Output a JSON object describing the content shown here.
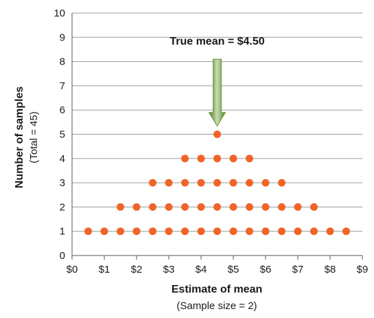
{
  "chart_data": {
    "type": "scatter",
    "subtype": "dot-plot",
    "title": "",
    "xlabel": "Estimate of mean",
    "xlabel_sub": "(Sample size = 2)",
    "ylabel": "Number of samples",
    "ylabel_sub": "(Total = 45)",
    "xlim": [
      0,
      9
    ],
    "ylim": [
      0,
      10
    ],
    "x_tick_labels": [
      "$0",
      "$1",
      "$2",
      "$3",
      "$4",
      "$5",
      "$6",
      "$7",
      "$8",
      "$9"
    ],
    "y_tick_labels": [
      "0",
      "1",
      "2",
      "3",
      "4",
      "5",
      "6",
      "7",
      "8",
      "9",
      "10"
    ],
    "grid": "horizontal",
    "dot_color": "#f0642a",
    "arrow_color": "#6a9a3a",
    "annotation": {
      "text": "True mean  =  $4.50",
      "x": 4.5
    },
    "bins": [
      {
        "x": 0.5,
        "count": 1
      },
      {
        "x": 1.0,
        "count": 1
      },
      {
        "x": 1.5,
        "count": 2
      },
      {
        "x": 2.0,
        "count": 2
      },
      {
        "x": 2.5,
        "count": 3
      },
      {
        "x": 3.0,
        "count": 3
      },
      {
        "x": 3.5,
        "count": 4
      },
      {
        "x": 4.0,
        "count": 4
      },
      {
        "x": 4.5,
        "count": 5
      },
      {
        "x": 5.0,
        "count": 4
      },
      {
        "x": 5.5,
        "count": 4
      },
      {
        "x": 6.0,
        "count": 3
      },
      {
        "x": 6.5,
        "count": 3
      },
      {
        "x": 7.0,
        "count": 2
      },
      {
        "x": 7.5,
        "count": 2
      },
      {
        "x": 8.0,
        "count": 1
      },
      {
        "x": 8.5,
        "count": 1
      }
    ]
  }
}
